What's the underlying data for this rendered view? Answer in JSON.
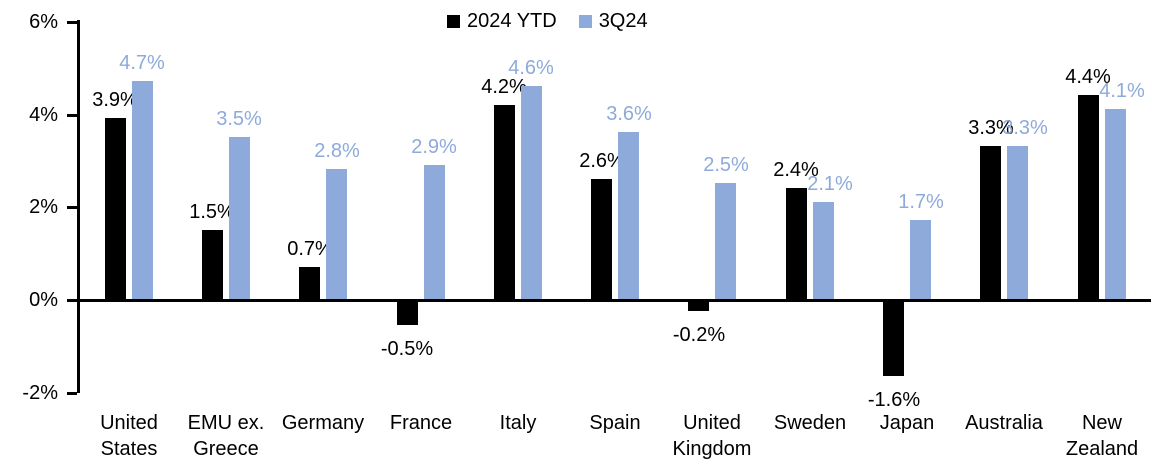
{
  "chart_data": {
    "type": "bar",
    "title": "",
    "categories": [
      "United\nStates",
      "EMU ex.\nGreece",
      "Germany",
      "France",
      "Italy",
      "Spain",
      "United\nKingdom",
      "Sweden",
      "Japan",
      "Australia",
      "New\nZealand"
    ],
    "series": [
      {
        "name": "2024 YTD",
        "color": "#000000",
        "label_color": "#000000",
        "values": [
          3.9,
          1.5,
          0.7,
          -0.5,
          4.2,
          2.6,
          -0.2,
          2.4,
          -1.6,
          3.3,
          4.4
        ]
      },
      {
        "name": "3Q24",
        "color": "#8EAADB",
        "label_color": "#8EAADB",
        "values": [
          4.7,
          3.5,
          2.8,
          2.9,
          4.6,
          3.6,
          2.5,
          2.1,
          1.7,
          3.3,
          4.1
        ]
      }
    ],
    "data_labels": true,
    "label_format": "{value}%",
    "xlabel": "",
    "ylabel": "",
    "y_axis": {
      "unit": "%",
      "ylim": [
        -2,
        6
      ],
      "tick_values": [
        6,
        4,
        2,
        0,
        -2
      ],
      "tick_labels": [
        "6%",
        "4%",
        "2%",
        "0%",
        "-2%"
      ]
    },
    "grid": false,
    "legend_position": "top-center",
    "colors": {
      "series1": "#000000",
      "series2": "#8EAADB",
      "axis": "#000000",
      "background": "#FFFFFF"
    }
  }
}
